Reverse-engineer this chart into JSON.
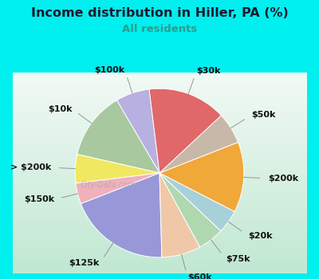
{
  "title": "Income distribution in Hiller, PA (%)",
  "subtitle": "All residents",
  "title_color": "#1a1a2e",
  "subtitle_color": "#2a9d8f",
  "bg_cyan": "#00efef",
  "bg_chart_top": "#f0f8f0",
  "bg_chart_bottom": "#b8e8c8",
  "watermark": "City-Data.com",
  "labels": [
    "$100k",
    "$10k",
    "> $200k",
    "$150k",
    "$125k",
    "$60k",
    "$75k",
    "$20k",
    "$200k",
    "$50k",
    "$30k"
  ],
  "sizes": [
    6.5,
    13.0,
    5.5,
    4.0,
    19.5,
    7.5,
    5.0,
    4.5,
    13.5,
    6.0,
    15.0
  ],
  "colors": [
    "#b8b0e0",
    "#a8c8a0",
    "#f0e860",
    "#f0b0bc",
    "#9898d8",
    "#f0c8a8",
    "#b0d8b0",
    "#a8d0d8",
    "#f0a838",
    "#c8b8a8",
    "#e06868"
  ],
  "label_fontsize": 8,
  "label_color": "#111111",
  "startangle": 97
}
